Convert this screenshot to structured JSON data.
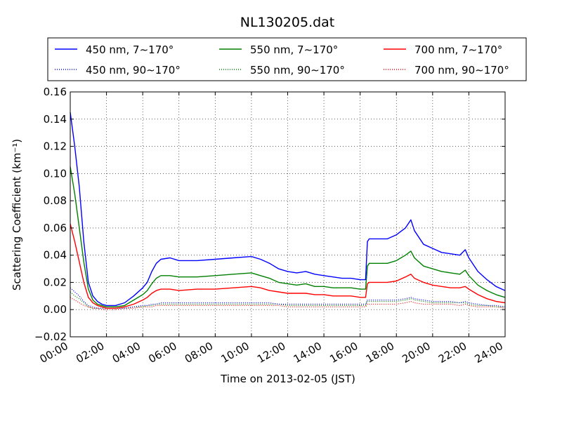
{
  "chart_data": {
    "type": "line",
    "title": "NL130205.dat",
    "xlabel": "Time on 2013-02-05 (JST)",
    "ylabel": "Scattering Coefficient (km⁻¹)",
    "xlim": [
      0,
      24
    ],
    "ylim": [
      -0.02,
      0.16
    ],
    "x_ticks": [
      {
        "value": 0,
        "label": "00:00"
      },
      {
        "value": 2,
        "label": "02:00"
      },
      {
        "value": 4,
        "label": "04:00"
      },
      {
        "value": 6,
        "label": "06:00"
      },
      {
        "value": 8,
        "label": "08:00"
      },
      {
        "value": 10,
        "label": "10:00"
      },
      {
        "value": 12,
        "label": "12:00"
      },
      {
        "value": 14,
        "label": "14:00"
      },
      {
        "value": 16,
        "label": "16:00"
      },
      {
        "value": 18,
        "label": "18:00"
      },
      {
        "value": 20,
        "label": "20:00"
      },
      {
        "value": 22,
        "label": "22:00"
      },
      {
        "value": 24,
        "label": "24:00"
      }
    ],
    "y_ticks": [
      {
        "value": -0.02,
        "label": "−0.02"
      },
      {
        "value": 0.0,
        "label": "0.00"
      },
      {
        "value": 0.02,
        "label": "0.02"
      },
      {
        "value": 0.04,
        "label": "0.04"
      },
      {
        "value": 0.06,
        "label": "0.06"
      },
      {
        "value": 0.08,
        "label": "0.08"
      },
      {
        "value": 0.1,
        "label": "0.10"
      },
      {
        "value": 0.12,
        "label": "0.12"
      },
      {
        "value": 0.14,
        "label": "0.14"
      },
      {
        "value": 0.16,
        "label": "0.16"
      }
    ],
    "grid": true,
    "legend_position": "top",
    "x": [
      0,
      0.25,
      0.5,
      0.75,
      1,
      1.25,
      1.5,
      1.75,
      2,
      2.5,
      3,
      3.5,
      4,
      4.25,
      4.5,
      4.75,
      5,
      5.5,
      6,
      7,
      8,
      9,
      10,
      10.5,
      11,
      11.5,
      12,
      12.5,
      13,
      13.5,
      14,
      14.5,
      15,
      15.5,
      16,
      16.3,
      16.4,
      16.5,
      17,
      17.5,
      18,
      18.5,
      18.8,
      19,
      19.5,
      20,
      20.5,
      21,
      21.5,
      21.8,
      22,
      22.5,
      23,
      23.5,
      24
    ],
    "series": [
      {
        "name": "450 nm, 7∼170°",
        "color": "#0000ff",
        "style": "solid",
        "values": [
          0.145,
          0.12,
          0.09,
          0.05,
          0.02,
          0.01,
          0.006,
          0.004,
          0.003,
          0.003,
          0.005,
          0.01,
          0.016,
          0.02,
          0.028,
          0.034,
          0.037,
          0.038,
          0.036,
          0.036,
          0.037,
          0.038,
          0.039,
          0.037,
          0.034,
          0.03,
          0.028,
          0.027,
          0.028,
          0.026,
          0.025,
          0.024,
          0.023,
          0.023,
          0.022,
          0.022,
          0.05,
          0.052,
          0.052,
          0.052,
          0.055,
          0.06,
          0.066,
          0.058,
          0.048,
          0.045,
          0.042,
          0.041,
          0.04,
          0.044,
          0.038,
          0.028,
          0.022,
          0.017,
          0.014
        ]
      },
      {
        "name": "550 nm, 7∼170°",
        "color": "#008000",
        "style": "solid",
        "values": [
          0.105,
          0.085,
          0.06,
          0.035,
          0.015,
          0.007,
          0.004,
          0.003,
          0.002,
          0.002,
          0.003,
          0.007,
          0.011,
          0.014,
          0.019,
          0.023,
          0.025,
          0.025,
          0.024,
          0.024,
          0.025,
          0.026,
          0.027,
          0.025,
          0.023,
          0.02,
          0.019,
          0.018,
          0.019,
          0.017,
          0.017,
          0.016,
          0.016,
          0.016,
          0.015,
          0.015,
          0.032,
          0.034,
          0.034,
          0.034,
          0.036,
          0.04,
          0.043,
          0.038,
          0.032,
          0.03,
          0.028,
          0.027,
          0.026,
          0.029,
          0.025,
          0.018,
          0.014,
          0.011,
          0.009
        ]
      },
      {
        "name": "700 nm, 7∼170°",
        "color": "#ff0000",
        "style": "solid",
        "values": [
          0.063,
          0.05,
          0.035,
          0.02,
          0.009,
          0.005,
          0.003,
          0.002,
          0.001,
          0.001,
          0.002,
          0.004,
          0.007,
          0.009,
          0.012,
          0.014,
          0.015,
          0.015,
          0.014,
          0.015,
          0.015,
          0.016,
          0.017,
          0.016,
          0.014,
          0.013,
          0.012,
          0.012,
          0.012,
          0.011,
          0.011,
          0.01,
          0.01,
          0.01,
          0.009,
          0.009,
          0.019,
          0.02,
          0.02,
          0.02,
          0.021,
          0.024,
          0.026,
          0.023,
          0.02,
          0.018,
          0.017,
          0.016,
          0.016,
          0.017,
          0.015,
          0.011,
          0.008,
          0.006,
          0.005
        ]
      },
      {
        "name": "450 nm, 90∼170°",
        "color": "#0000ff",
        "style": "dotted",
        "values": [
          0.016,
          0.013,
          0.01,
          0.006,
          0.003,
          0.002,
          0.001,
          0.001,
          0.001,
          0.001,
          0.001,
          0.002,
          0.003,
          0.003,
          0.004,
          0.004,
          0.005,
          0.005,
          0.005,
          0.005,
          0.005,
          0.005,
          0.005,
          0.005,
          0.005,
          0.004,
          0.004,
          0.004,
          0.004,
          0.004,
          0.004,
          0.004,
          0.004,
          0.004,
          0.004,
          0.004,
          0.007,
          0.007,
          0.007,
          0.007,
          0.007,
          0.008,
          0.009,
          0.008,
          0.007,
          0.006,
          0.006,
          0.006,
          0.005,
          0.006,
          0.005,
          0.004,
          0.003,
          0.003,
          0.002
        ]
      },
      {
        "name": "550 nm, 90∼170°",
        "color": "#008000",
        "style": "dotted",
        "values": [
          0.013,
          0.01,
          0.008,
          0.005,
          0.002,
          0.001,
          0.001,
          0.001,
          0.001,
          0.001,
          0.001,
          0.002,
          0.002,
          0.003,
          0.003,
          0.004,
          0.004,
          0.004,
          0.004,
          0.004,
          0.004,
          0.004,
          0.004,
          0.004,
          0.004,
          0.004,
          0.003,
          0.003,
          0.003,
          0.003,
          0.003,
          0.003,
          0.003,
          0.003,
          0.003,
          0.003,
          0.006,
          0.006,
          0.006,
          0.006,
          0.006,
          0.007,
          0.008,
          0.007,
          0.006,
          0.005,
          0.005,
          0.005,
          0.005,
          0.005,
          0.004,
          0.003,
          0.003,
          0.002,
          0.002
        ]
      },
      {
        "name": "700 nm, 90∼170°",
        "color": "#ff0000",
        "style": "dotted",
        "values": [
          0.009,
          0.007,
          0.005,
          0.003,
          0.002,
          0.001,
          0.001,
          0.0,
          0.0,
          0.0,
          0.001,
          0.001,
          0.002,
          0.002,
          0.002,
          0.003,
          0.003,
          0.003,
          0.003,
          0.003,
          0.003,
          0.003,
          0.003,
          0.003,
          0.003,
          0.003,
          0.002,
          0.002,
          0.002,
          0.002,
          0.002,
          0.002,
          0.002,
          0.002,
          0.002,
          0.002,
          0.004,
          0.004,
          0.004,
          0.004,
          0.004,
          0.005,
          0.006,
          0.005,
          0.004,
          0.004,
          0.004,
          0.004,
          0.003,
          0.004,
          0.003,
          0.002,
          0.002,
          0.002,
          0.001
        ]
      }
    ]
  }
}
